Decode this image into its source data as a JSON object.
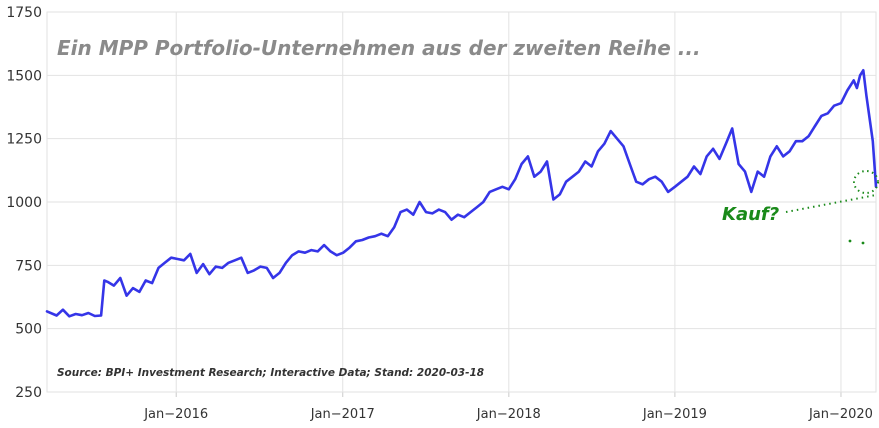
{
  "chart_data": {
    "type": "line",
    "title": "Ein MPP Portfolio-Unternehmen aus der zweiten Reihe ...",
    "source": "Source: BPI+ Investment Research; Interactive Data; Stand: 2020-03-18",
    "xlabel": "",
    "ylabel": "",
    "ylim": [
      250,
      1750
    ],
    "yticks": [
      250,
      500,
      750,
      1000,
      1250,
      1500,
      1750
    ],
    "xlim": [
      "2015-03-23",
      "2020-03-18"
    ],
    "xticks": [
      {
        "date": "2016-01-01",
        "label": "Jan−2016"
      },
      {
        "date": "2017-01-01",
        "label": "Jan−2017"
      },
      {
        "date": "2018-01-01",
        "label": "Jan−2018"
      },
      {
        "date": "2019-01-01",
        "label": "Jan−2019"
      },
      {
        "date": "2020-01-01",
        "label": "Jan−2020"
      }
    ],
    "grid": true,
    "line_color": "#3535e8",
    "series": [
      {
        "points": [
          [
            "2015-03-23",
            568
          ],
          [
            "2015-04-13",
            552
          ],
          [
            "2015-04-27",
            575
          ],
          [
            "2015-05-11",
            549
          ],
          [
            "2015-05-25",
            558
          ],
          [
            "2015-06-08",
            553
          ],
          [
            "2015-06-22",
            562
          ],
          [
            "2015-07-06",
            550
          ],
          [
            "2015-07-20",
            552
          ],
          [
            "2015-07-27",
            690
          ],
          [
            "2015-08-03",
            685
          ],
          [
            "2015-08-17",
            670
          ],
          [
            "2015-08-31",
            700
          ],
          [
            "2015-09-14",
            630
          ],
          [
            "2015-09-28",
            660
          ],
          [
            "2015-10-12",
            645
          ],
          [
            "2015-10-26",
            690
          ],
          [
            "2015-11-09",
            680
          ],
          [
            "2015-11-23",
            740
          ],
          [
            "2015-12-07",
            760
          ],
          [
            "2015-12-21",
            780
          ],
          [
            "2016-01-04",
            775
          ],
          [
            "2016-01-18",
            770
          ],
          [
            "2016-02-01",
            795
          ],
          [
            "2016-02-15",
            720
          ],
          [
            "2016-02-29",
            755
          ],
          [
            "2016-03-14",
            715
          ],
          [
            "2016-03-28",
            745
          ],
          [
            "2016-04-11",
            740
          ],
          [
            "2016-04-25",
            760
          ],
          [
            "2016-05-09",
            770
          ],
          [
            "2016-05-23",
            780
          ],
          [
            "2016-06-06",
            720
          ],
          [
            "2016-06-20",
            730
          ],
          [
            "2016-07-04",
            745
          ],
          [
            "2016-07-18",
            740
          ],
          [
            "2016-08-01",
            700
          ],
          [
            "2016-08-15",
            720
          ],
          [
            "2016-08-29",
            760
          ],
          [
            "2016-09-12",
            790
          ],
          [
            "2016-09-26",
            805
          ],
          [
            "2016-10-10",
            800
          ],
          [
            "2016-10-24",
            810
          ],
          [
            "2016-11-07",
            805
          ],
          [
            "2016-11-21",
            830
          ],
          [
            "2016-12-05",
            805
          ],
          [
            "2016-12-19",
            790
          ],
          [
            "2017-01-02",
            800
          ],
          [
            "2017-01-16",
            820
          ],
          [
            "2017-01-30",
            845
          ],
          [
            "2017-02-13",
            850
          ],
          [
            "2017-02-27",
            860
          ],
          [
            "2017-03-13",
            865
          ],
          [
            "2017-03-27",
            875
          ],
          [
            "2017-04-10",
            865
          ],
          [
            "2017-04-24",
            900
          ],
          [
            "2017-05-08",
            960
          ],
          [
            "2017-05-22",
            970
          ],
          [
            "2017-06-05",
            950
          ],
          [
            "2017-06-19",
            1000
          ],
          [
            "2017-07-03",
            960
          ],
          [
            "2017-07-17",
            955
          ],
          [
            "2017-07-31",
            970
          ],
          [
            "2017-08-14",
            960
          ],
          [
            "2017-08-28",
            930
          ],
          [
            "2017-09-11",
            950
          ],
          [
            "2017-09-25",
            940
          ],
          [
            "2017-10-09",
            960
          ],
          [
            "2017-10-23",
            980
          ],
          [
            "2017-11-06",
            1000
          ],
          [
            "2017-11-20",
            1040
          ],
          [
            "2017-12-04",
            1050
          ],
          [
            "2017-12-18",
            1060
          ],
          [
            "2018-01-01",
            1050
          ],
          [
            "2018-01-15",
            1090
          ],
          [
            "2018-01-29",
            1150
          ],
          [
            "2018-02-12",
            1180
          ],
          [
            "2018-02-26",
            1100
          ],
          [
            "2018-03-12",
            1120
          ],
          [
            "2018-03-26",
            1160
          ],
          [
            "2018-04-09",
            1010
          ],
          [
            "2018-04-23",
            1030
          ],
          [
            "2018-05-07",
            1080
          ],
          [
            "2018-05-21",
            1100
          ],
          [
            "2018-06-04",
            1120
          ],
          [
            "2018-06-18",
            1160
          ],
          [
            "2018-07-02",
            1140
          ],
          [
            "2018-07-16",
            1200
          ],
          [
            "2018-07-30",
            1230
          ],
          [
            "2018-08-13",
            1280
          ],
          [
            "2018-08-27",
            1250
          ],
          [
            "2018-09-10",
            1220
          ],
          [
            "2018-09-24",
            1150
          ],
          [
            "2018-10-08",
            1080
          ],
          [
            "2018-10-22",
            1070
          ],
          [
            "2018-11-05",
            1090
          ],
          [
            "2018-11-19",
            1100
          ],
          [
            "2018-12-03",
            1080
          ],
          [
            "2018-12-17",
            1040
          ],
          [
            "2019-01-01",
            1060
          ],
          [
            "2019-01-15",
            1080
          ],
          [
            "2019-01-29",
            1100
          ],
          [
            "2019-02-12",
            1140
          ],
          [
            "2019-02-26",
            1110
          ],
          [
            "2019-03-12",
            1180
          ],
          [
            "2019-03-26",
            1210
          ],
          [
            "2019-04-09",
            1170
          ],
          [
            "2019-04-23",
            1230
          ],
          [
            "2019-05-07",
            1290
          ],
          [
            "2019-05-21",
            1150
          ],
          [
            "2019-06-04",
            1120
          ],
          [
            "2019-06-18",
            1040
          ],
          [
            "2019-07-02",
            1120
          ],
          [
            "2019-07-16",
            1100
          ],
          [
            "2019-07-30",
            1180
          ],
          [
            "2019-08-13",
            1220
          ],
          [
            "2019-08-27",
            1180
          ],
          [
            "2019-09-10",
            1200
          ],
          [
            "2019-09-24",
            1240
          ],
          [
            "2019-10-08",
            1240
          ],
          [
            "2019-10-22",
            1260
          ],
          [
            "2019-11-05",
            1300
          ],
          [
            "2019-11-19",
            1340
          ],
          [
            "2019-12-03",
            1350
          ],
          [
            "2019-12-17",
            1380
          ],
          [
            "2020-01-01",
            1390
          ],
          [
            "2020-01-15",
            1440
          ],
          [
            "2020-01-29",
            1480
          ],
          [
            "2020-02-05",
            1450
          ],
          [
            "2020-02-12",
            1500
          ],
          [
            "2020-02-19",
            1520
          ],
          [
            "2020-02-26",
            1420
          ],
          [
            "2020-03-04",
            1330
          ],
          [
            "2020-03-11",
            1240
          ],
          [
            "2020-03-18",
            1060
          ]
        ]
      }
    ],
    "annotations": [
      {
        "text": "Kauf?",
        "color": "#1a8a1a"
      }
    ]
  }
}
